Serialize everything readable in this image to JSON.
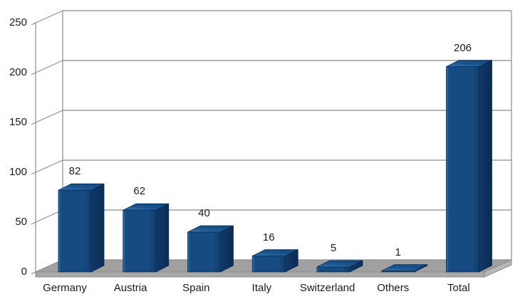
{
  "chart_data": {
    "type": "bar",
    "style": "3d-column",
    "title": "",
    "xlabel": "",
    "ylabel": "",
    "categories": [
      "Germany",
      "Austria",
      "Spain",
      "Italy",
      "Switzerland",
      "Others",
      "Total"
    ],
    "values": [
      82,
      62,
      40,
      16,
      5,
      1,
      206
    ],
    "value_labels": [
      "82",
      "62",
      "40",
      "16",
      "5",
      "1",
      "206"
    ],
    "ylim": [
      0,
      250
    ],
    "yticks": [
      0,
      50,
      100,
      150,
      200,
      250
    ],
    "ytick_labels": [
      "0",
      "50",
      "100",
      "150",
      "200",
      "250"
    ],
    "grid": true,
    "legend": false,
    "colors": {
      "bar_front_light": "#3272ae",
      "bar_front": "#164b81",
      "bar_front_dark": "#103e6c",
      "bar_top_light": "#3b7ab4",
      "bar_top": "#1c568f",
      "bar_top_dark": "#134a7f",
      "bar_side_light": "#10396a",
      "bar_side_dark": "#0c2b53",
      "bar_outline": "#0a2c55",
      "grid_line": "#8c8c8c",
      "floor_top": "#a0a0a0",
      "floor_front": "#a9a9a9",
      "floor_side": "#b7b7b7",
      "text": "#1c1c1c",
      "background": "#ffffff"
    }
  }
}
